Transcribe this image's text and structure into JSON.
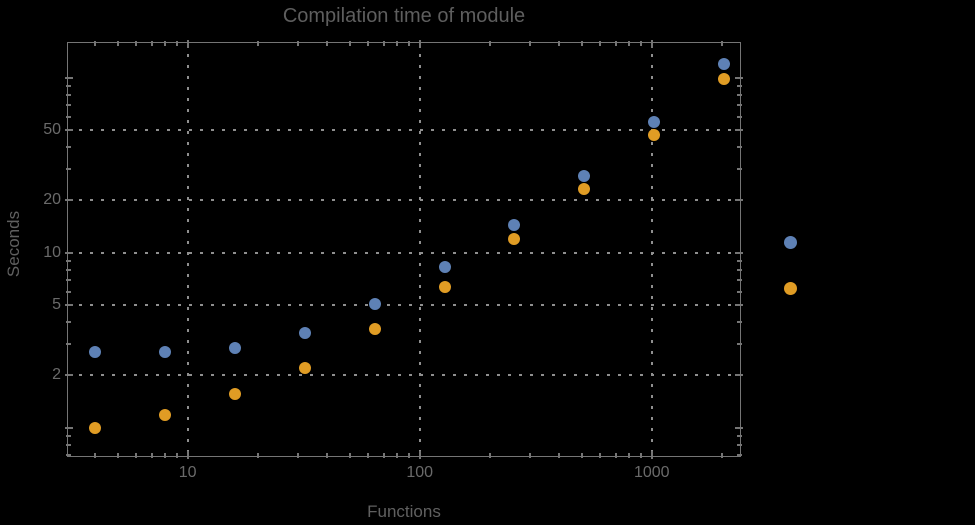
{
  "title": "Compilation time of module",
  "colors": {
    "background": "#000000",
    "frame": "#757575",
    "grid": "#8f8f8f",
    "tick_text": "#6a6a6a",
    "label_text": "#606060",
    "series1": "#5e81b5",
    "series2": "#e09c24"
  },
  "chart_data": {
    "type": "scatter",
    "title": "Compilation time of module",
    "xlabel": "Functions",
    "ylabel": "Seconds",
    "xscale": "log",
    "yscale": "log",
    "xlim": [
      3.05,
      2400
    ],
    "ylim": [
      0.69,
      158
    ],
    "grid": true,
    "grid_style": "dotted",
    "x_ticks": [
      {
        "value": 10,
        "label": "10"
      },
      {
        "value": 100,
        "label": "100"
      },
      {
        "value": 1000,
        "label": "1000"
      }
    ],
    "y_ticks": [
      {
        "value": 2,
        "label": "2"
      },
      {
        "value": 5,
        "label": "5"
      },
      {
        "value": 10,
        "label": "10"
      },
      {
        "value": 20,
        "label": "20"
      },
      {
        "value": 50,
        "label": "50"
      }
    ],
    "x": [
      4,
      8,
      16,
      32,
      64,
      128,
      256,
      512,
      1024,
      2048
    ],
    "series": [
      {
        "name": "series-1-blue",
        "color": "#5e81b5",
        "marker": "circle",
        "values": [
          2.7,
          2.7,
          2.85,
          3.5,
          5.1,
          8.3,
          14.5,
          27.5,
          56,
          120
        ]
      },
      {
        "name": "series-2-orange",
        "color": "#e09c24",
        "marker": "circle",
        "values": [
          1.0,
          1.18,
          1.55,
          2.2,
          3.65,
          6.4,
          12.0,
          23.0,
          47.0,
          98.0
        ]
      }
    ],
    "legend": {
      "position": "right",
      "items": [
        {
          "color": "#5e81b5",
          "label": ""
        },
        {
          "color": "#e09c24",
          "label": ""
        }
      ]
    }
  }
}
